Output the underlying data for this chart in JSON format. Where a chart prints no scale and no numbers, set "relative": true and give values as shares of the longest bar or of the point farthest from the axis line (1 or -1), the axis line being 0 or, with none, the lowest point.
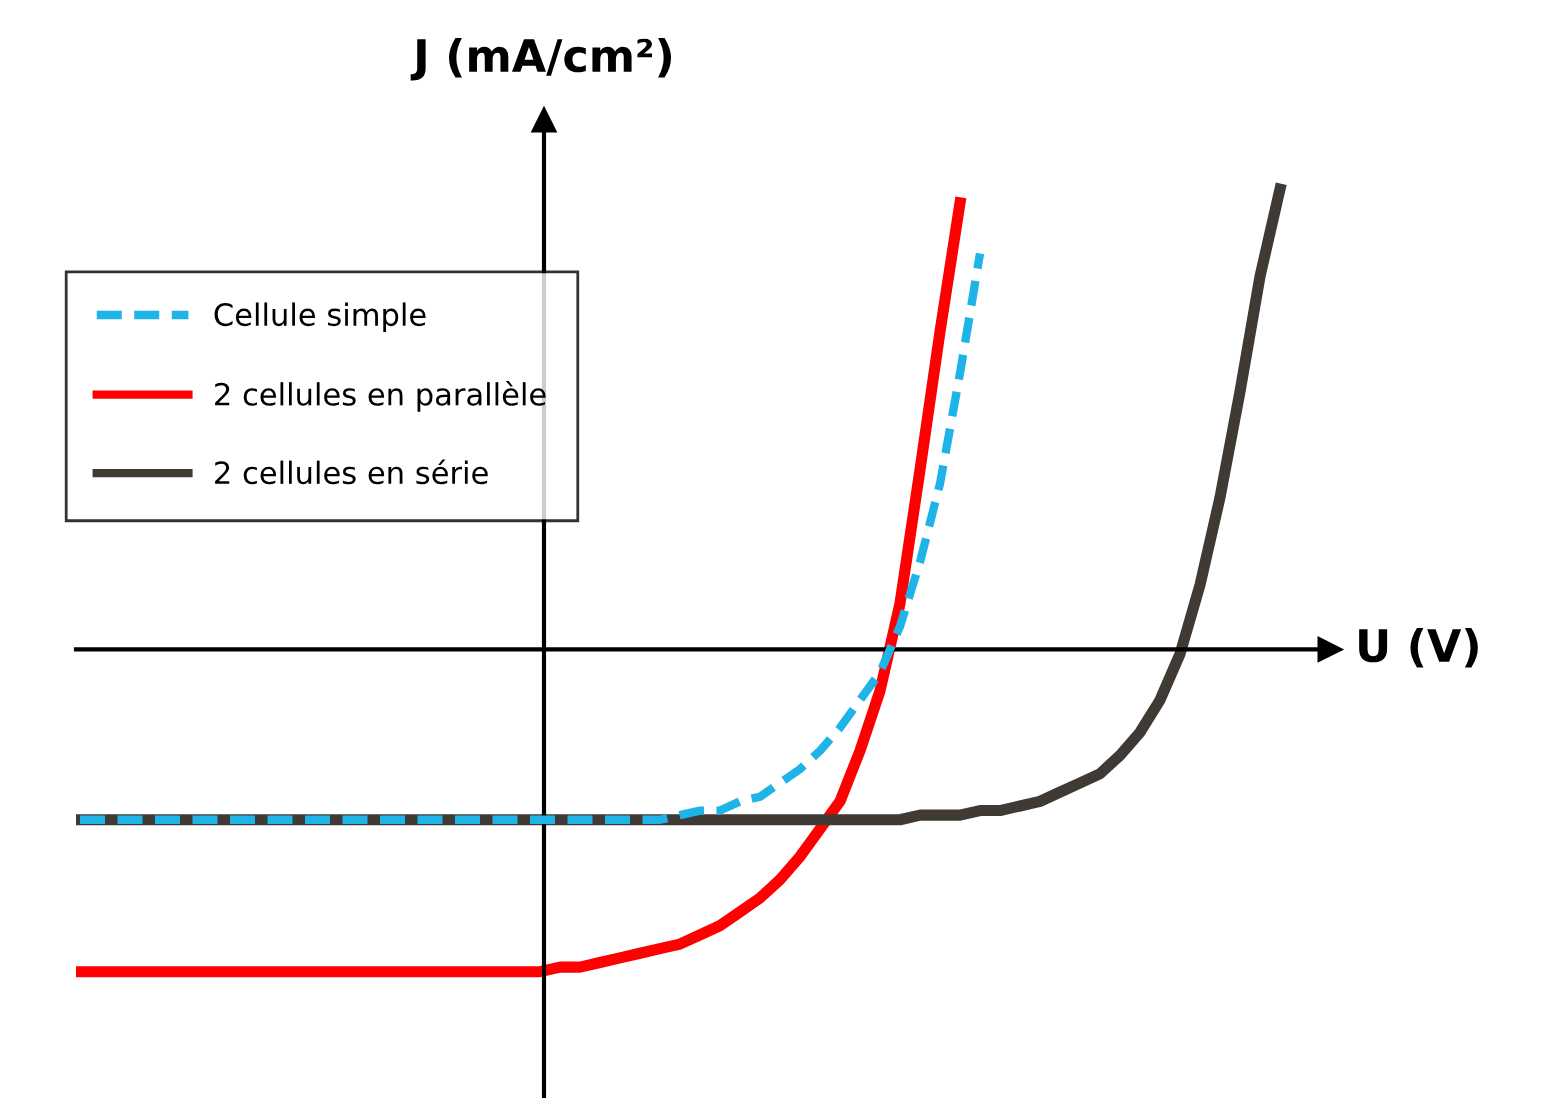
{
  "chart_data": {
    "type": "line",
    "relative": true,
    "xlabel": "U (V)",
    "ylabel": "J (mA/cm²)",
    "legend": "top left",
    "categories": [
      null,
      null,
      null,
      null,
      null,
      null,
      null,
      null,
      null,
      null,
      null,
      null,
      null,
      null,
      null,
      null,
      null,
      null,
      null,
      null,
      null,
      null,
      null,
      null,
      null,
      null,
      null,
      null,
      null,
      null,
      null,
      null,
      null,
      null,
      null,
      null,
      null,
      null,
      null,
      null,
      null,
      null,
      null,
      null,
      null,
      null,
      null,
      null,
      null,
      null,
      null,
      null,
      null,
      null,
      null,
      null,
      null,
      null,
      null,
      null,
      null
    ],
    "series": [
      {
        "name": "Cellule simple",
        "color": "#1fb4e8",
        "line_style": "dashed",
        "values": [
          -0.37,
          -0.37,
          -0.37,
          -0.37,
          -0.37,
          -0.37,
          -0.37,
          -0.37,
          -0.37,
          -0.37,
          -0.37,
          -0.37,
          -0.37,
          -0.37,
          -0.37,
          -0.37,
          -0.37,
          -0.37,
          -0.37,
          -0.37,
          -0.37,
          -0.37,
          -0.37,
          -0.37,
          -0.37,
          -0.37,
          -0.37,
          -0.37,
          -0.37,
          -0.37,
          -0.36,
          -0.35,
          -0.35,
          -0.33,
          -0.32,
          -0.29,
          -0.26,
          -0.22,
          -0.17,
          -0.11,
          -0.05,
          0.05,
          0.19,
          0.36,
          0.6,
          0.86,
          null,
          null,
          null,
          null,
          null,
          null,
          null,
          null,
          null,
          null,
          null,
          null,
          null,
          null,
          null
        ]
      },
      {
        "name": "2 cellules en parallèle",
        "color": "#ff0000",
        "line_style": "solid",
        "values": [
          -0.7,
          -0.7,
          -0.7,
          -0.7,
          -0.7,
          -0.7,
          -0.7,
          -0.7,
          -0.7,
          -0.7,
          -0.7,
          -0.7,
          -0.7,
          -0.7,
          -0.7,
          -0.7,
          -0.7,
          -0.7,
          -0.7,
          -0.7,
          -0.7,
          -0.7,
          -0.7,
          -0.7,
          -0.69,
          -0.69,
          -0.68,
          -0.67,
          -0.66,
          -0.65,
          -0.64,
          -0.62,
          -0.6,
          -0.57,
          -0.54,
          -0.5,
          -0.45,
          -0.39,
          -0.33,
          -0.22,
          -0.09,
          0.1,
          0.39,
          0.69,
          0.97,
          null,
          null,
          null,
          null,
          null,
          null,
          null,
          null,
          null,
          null,
          null,
          null,
          null,
          null,
          null,
          null
        ]
      },
      {
        "name": "2 cellules en série",
        "color": "#403a35",
        "line_style": "solid",
        "values": [
          -0.37,
          -0.37,
          -0.37,
          -0.37,
          -0.37,
          -0.37,
          -0.37,
          -0.37,
          -0.37,
          -0.37,
          -0.37,
          -0.37,
          -0.37,
          -0.37,
          -0.37,
          -0.37,
          -0.37,
          -0.37,
          -0.37,
          -0.37,
          -0.37,
          -0.37,
          -0.37,
          -0.37,
          -0.37,
          -0.37,
          -0.37,
          -0.37,
          -0.37,
          -0.37,
          -0.37,
          -0.37,
          -0.37,
          -0.37,
          -0.37,
          -0.37,
          -0.37,
          -0.37,
          -0.37,
          -0.37,
          -0.37,
          -0.37,
          -0.36,
          -0.36,
          -0.36,
          -0.35,
          -0.35,
          -0.34,
          -0.33,
          -0.31,
          -0.29,
          -0.27,
          -0.23,
          -0.18,
          -0.11,
          -0.01,
          0.14,
          0.33,
          0.56,
          0.81,
          1.0
        ]
      }
    ]
  }
}
